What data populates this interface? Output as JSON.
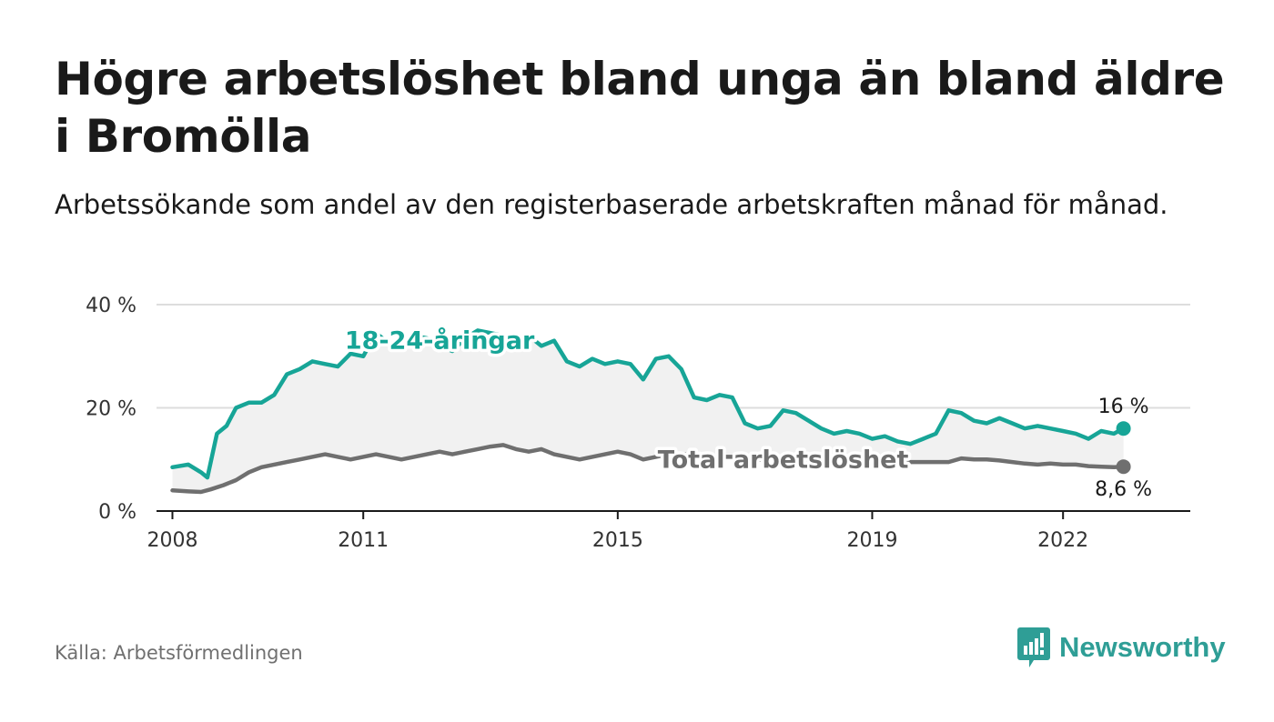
{
  "title": "Högre arbetslöshet bland unga än bland äldre i Bromölla",
  "subtitle": "Arbetssökande som andel av den registerbaserade arbetskraften månad för månad.",
  "source": "Källa: Arbetsförmedlingen",
  "logo": {
    "name": "Newsworthy",
    "icon": "bar-chart-speech-bubble-icon"
  },
  "colors": {
    "youth": "#17a597",
    "total": "#6f6f6f",
    "area": "#f1f1f1",
    "grid": "#dddddd",
    "axis": "#1a1a1a",
    "logo": "#2f9e96"
  },
  "chart_data": {
    "type": "line",
    "title": "Högre arbetslöshet bland unga än bland äldre i Bromölla",
    "xlabel": "",
    "ylabel": "",
    "xlim": [
      2007.75,
      2024.0
    ],
    "ylim": [
      0,
      40
    ],
    "y_ticks": [
      0,
      20,
      40
    ],
    "y_tick_labels": [
      "0 %",
      "20 %",
      "40 %"
    ],
    "x_ticks": [
      2008,
      2011,
      2015,
      2019,
      2022
    ],
    "x_tick_labels": [
      "2008",
      "2011",
      "2015",
      "2019",
      "2022"
    ],
    "grid": true,
    "series": [
      {
        "name": "18-24-åringar",
        "label": "18-24-åringar",
        "end_label": "16 %",
        "x": [
          2008.0,
          2008.25,
          2008.45,
          2008.55,
          2008.7,
          2008.85,
          2009.0,
          2009.2,
          2009.4,
          2009.6,
          2009.8,
          2010.0,
          2010.2,
          2010.4,
          2010.6,
          2010.8,
          2011.0,
          2011.2,
          2011.4,
          2011.6,
          2011.8,
          2012.0,
          2012.2,
          2012.4,
          2012.6,
          2012.8,
          2013.0,
          2013.2,
          2013.4,
          2013.6,
          2013.8,
          2014.0,
          2014.2,
          2014.4,
          2014.6,
          2014.8,
          2015.0,
          2015.2,
          2015.4,
          2015.6,
          2015.8,
          2016.0,
          2016.2,
          2016.4,
          2016.6,
          2016.8,
          2017.0,
          2017.2,
          2017.4,
          2017.6,
          2017.8,
          2018.0,
          2018.2,
          2018.4,
          2018.6,
          2018.8,
          2019.0,
          2019.2,
          2019.4,
          2019.6,
          2019.8,
          2020.0,
          2020.2,
          2020.4,
          2020.6,
          2020.8,
          2021.0,
          2021.2,
          2021.4,
          2021.6,
          2021.8,
          2022.0,
          2022.2,
          2022.4,
          2022.6,
          2022.8,
          2022.95
        ],
        "y": [
          8.5,
          9.0,
          7.5,
          6.5,
          15.0,
          16.5,
          20.0,
          21.0,
          21.0,
          22.5,
          26.5,
          27.5,
          29.0,
          28.5,
          28.0,
          30.5,
          30.0,
          34.5,
          32.5,
          32.0,
          34.0,
          33.5,
          32.0,
          31.0,
          33.5,
          35.0,
          34.5,
          34.0,
          33.0,
          34.0,
          32.0,
          33.0,
          29.0,
          28.0,
          29.5,
          28.5,
          29.0,
          28.5,
          25.5,
          29.5,
          30.0,
          27.5,
          22.0,
          21.5,
          22.5,
          22.0,
          17.0,
          16.0,
          16.5,
          19.5,
          19.0,
          17.5,
          16.0,
          15.0,
          15.5,
          15.0,
          14.0,
          14.5,
          13.5,
          13.0,
          14.0,
          15.0,
          19.5,
          19.0,
          17.5,
          17.0,
          18.0,
          17.0,
          16.0,
          16.5,
          16.0,
          15.5,
          15.0,
          14.0,
          15.5,
          15.0,
          16.0
        ]
      },
      {
        "name": "Total arbetslöshet",
        "label": "Total arbetslöshet",
        "end_label": "8,6 %",
        "x": [
          2008.0,
          2008.25,
          2008.45,
          2008.6,
          2008.8,
          2009.0,
          2009.2,
          2009.4,
          2009.6,
          2009.8,
          2010.0,
          2010.2,
          2010.4,
          2010.6,
          2010.8,
          2011.0,
          2011.2,
          2011.4,
          2011.6,
          2011.8,
          2012.0,
          2012.2,
          2012.4,
          2012.6,
          2012.8,
          2013.0,
          2013.2,
          2013.4,
          2013.6,
          2013.8,
          2014.0,
          2014.2,
          2014.4,
          2014.6,
          2014.8,
          2015.0,
          2015.2,
          2015.4,
          2015.6,
          2015.8,
          2016.0,
          2016.2,
          2016.4,
          2016.6,
          2016.8,
          2017.0,
          2017.2,
          2017.4,
          2017.6,
          2017.8,
          2018.0,
          2018.2,
          2018.4,
          2018.6,
          2018.8,
          2019.0,
          2019.2,
          2019.4,
          2019.6,
          2019.8,
          2020.0,
          2020.2,
          2020.4,
          2020.6,
          2020.8,
          2021.0,
          2021.2,
          2021.4,
          2021.6,
          2021.8,
          2022.0,
          2022.2,
          2022.4,
          2022.6,
          2022.8,
          2022.95
        ],
        "y": [
          4.0,
          3.8,
          3.7,
          4.2,
          5.0,
          6.0,
          7.5,
          8.5,
          9.0,
          9.5,
          10.0,
          10.5,
          11.0,
          10.5,
          10.0,
          10.5,
          11.0,
          10.5,
          10.0,
          10.5,
          11.0,
          11.5,
          11.0,
          11.5,
          12.0,
          12.5,
          12.8,
          12.0,
          11.5,
          12.0,
          11.0,
          10.5,
          10.0,
          10.5,
          11.0,
          11.5,
          11.0,
          10.0,
          10.5,
          11.0,
          11.0,
          11.0,
          10.8,
          10.5,
          10.5,
          10.3,
          10.0,
          10.0,
          10.2,
          10.3,
          10.0,
          9.8,
          10.0,
          10.0,
          9.8,
          9.8,
          9.7,
          9.5,
          9.5,
          9.5,
          9.5,
          9.5,
          10.2,
          10.0,
          10.0,
          9.8,
          9.5,
          9.2,
          9.0,
          9.2,
          9.0,
          9.0,
          8.7,
          8.6,
          8.5,
          8.6
        ]
      }
    ]
  }
}
